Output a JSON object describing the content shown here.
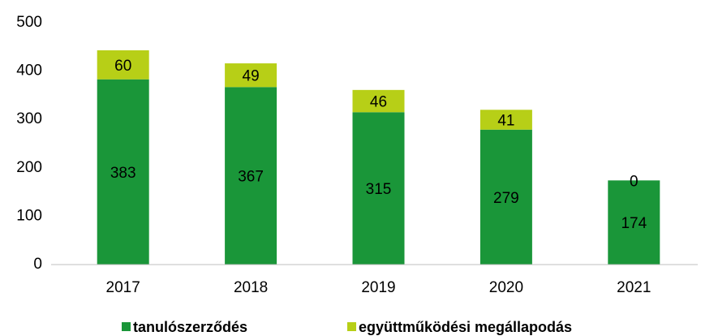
{
  "chart_data": {
    "type": "bar",
    "stacked": true,
    "categories": [
      "2017",
      "2018",
      "2019",
      "2020",
      "2021"
    ],
    "series": [
      {
        "name": "tanulószerződés",
        "color": "#1a9639",
        "values": [
          383,
          367,
          315,
          279,
          174
        ]
      },
      {
        "name": "együttműködési megállapodás",
        "color": "#b7cf17",
        "values": [
          60,
          49,
          46,
          41,
          0
        ]
      }
    ],
    "ylim": [
      0,
      500
    ],
    "yticks": [
      0,
      100,
      200,
      300,
      400,
      500
    ],
    "grid": false
  }
}
